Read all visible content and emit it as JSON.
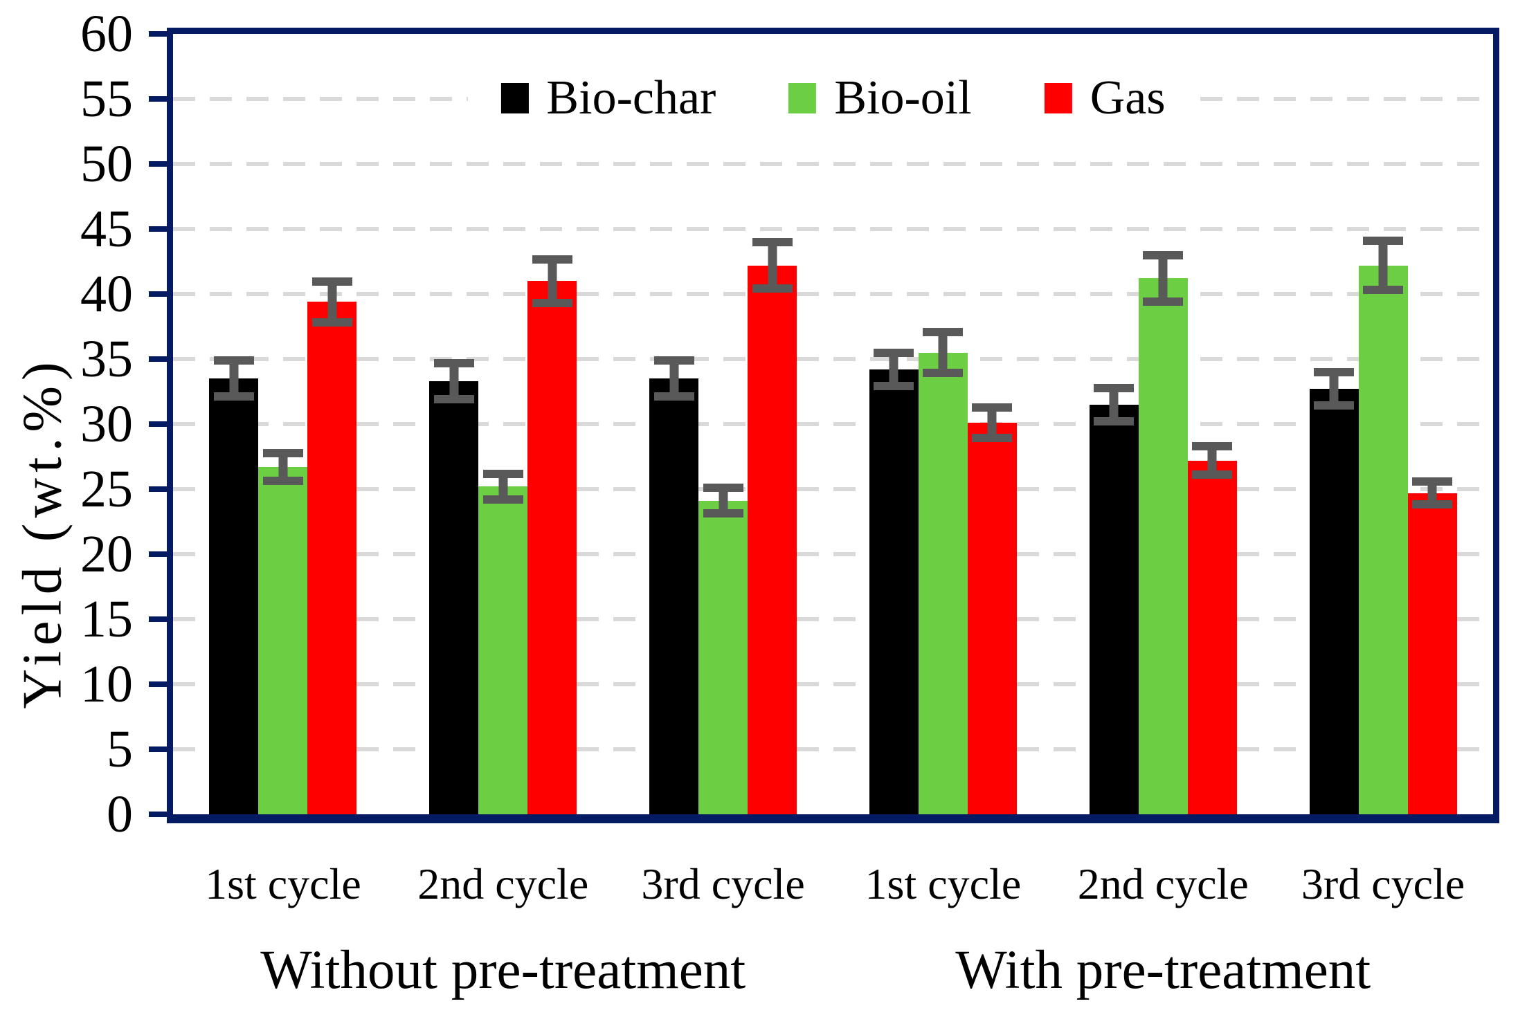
{
  "chart_data": {
    "type": "bar",
    "title": "",
    "ylabel": "Yield (wt.%)",
    "ylim": [
      0,
      60
    ],
    "ytick_step": 5,
    "grid": "dashed-horizontal",
    "legend_position": "top-center",
    "axis_color": "#041B63",
    "grid_color": "#D9D9D9",
    "error_bar_color": "#595959",
    "categories": [
      "1st cycle",
      "2nd cycle",
      "3rd cycle",
      "1st cycle",
      "2nd cycle",
      "3rd cycle"
    ],
    "category_groups": [
      {
        "label": "Without pre-treatment"
      },
      {
        "label": "With pre-treatment"
      }
    ],
    "series": [
      {
        "name": "Bio-char",
        "color": "#000000",
        "values": [
          33.5,
          33.3,
          33.5,
          34.2,
          31.5,
          32.7
        ],
        "errors": [
          1.7,
          1.7,
          1.7,
          1.6,
          1.6,
          1.6
        ]
      },
      {
        "name": "Bio-oil",
        "color": "#6BCE43",
        "values": [
          26.7,
          25.2,
          24.1,
          35.5,
          41.2,
          42.2
        ],
        "errors": [
          1.4,
          1.3,
          1.3,
          1.9,
          2.1,
          2.2
        ]
      },
      {
        "name": "Gas",
        "color": "#FF0000",
        "values": [
          39.4,
          41.0,
          42.2,
          30.1,
          27.2,
          24.7
        ],
        "errors": [
          1.9,
          2.0,
          2.1,
          1.5,
          1.4,
          1.2
        ]
      }
    ]
  }
}
